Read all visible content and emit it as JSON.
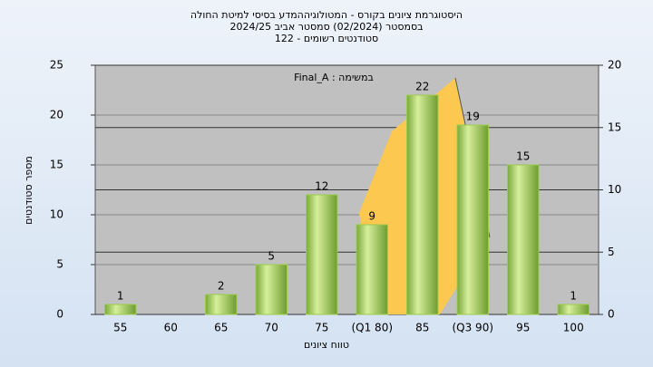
{
  "chart_data": {
    "type": "bar",
    "title": "היסטוגרמת ציונים בקורס - המטולוגיההמדע בסיסי למיטת החולה",
    "subtitle": "בסמסטר  (02/2024)  סמסטר אביב 2024/25",
    "subtitle2": "סטודנטים רשומים - 122",
    "annotation": "Final_A : במשימה",
    "x_label": "טווח ציונים",
    "y_label": "מספר סטודנטים",
    "categories": [
      "55",
      "60",
      "65",
      "70",
      "75",
      "(Q1 80)",
      "85",
      "(Q3 90)",
      "95",
      "100"
    ],
    "values": [
      1,
      null,
      2,
      5,
      12,
      9,
      22,
      19,
      15,
      1
    ],
    "color": "#9ccc4c",
    "ylim": [
      0,
      25
    ],
    "yticks": [
      0,
      5,
      10,
      15,
      20,
      25
    ],
    "y2lim": [
      0,
      20
    ],
    "y2ticks": [
      0,
      5,
      10,
      15,
      20
    ],
    "grid": true
  }
}
